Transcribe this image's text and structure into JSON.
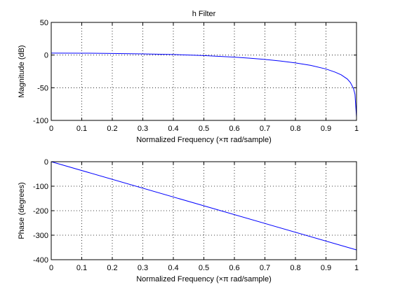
{
  "chart_data": [
    {
      "type": "line",
      "title": "h Filter",
      "xlabel": "Normalized Frequency  (×π rad/sample)",
      "ylabel": "Magnitude (dB)",
      "xlim": [
        0,
        1
      ],
      "ylim": [
        -100,
        50
      ],
      "xticks": [
        0,
        0.1,
        0.2,
        0.3,
        0.4,
        0.5,
        0.6,
        0.7,
        0.8,
        0.9,
        1
      ],
      "xtick_labels": [
        "0",
        "0.1",
        "0.2",
        "0.3",
        "0.4",
        "0.5",
        "0.6",
        "0.7",
        "0.8",
        "0.9",
        "1"
      ],
      "yticks": [
        -100,
        -50,
        0,
        50
      ],
      "ytick_labels": [
        "-100",
        "-50",
        "0",
        "50"
      ],
      "grid": true,
      "line_color": "#0000ff",
      "series": [
        {
          "x": [
            0,
            0.1,
            0.2,
            0.3,
            0.4,
            0.5,
            0.55,
            0.6,
            0.65,
            0.7,
            0.75,
            0.8,
            0.85,
            0.9,
            0.93,
            0.95,
            0.97,
            0.98,
            0.99,
            0.995,
            1.0
          ],
          "y": [
            3.0,
            2.9,
            2.5,
            1.8,
            0.9,
            -0.8,
            -1.9,
            -3.2,
            -4.8,
            -6.7,
            -9.1,
            -12.0,
            -15.8,
            -21.3,
            -26.1,
            -30.3,
            -36.7,
            -42.0,
            -51.0,
            -60.0,
            -95.0
          ]
        }
      ]
    },
    {
      "type": "line",
      "title": "",
      "xlabel": "Normalized Frequency  (×π rad/sample)",
      "ylabel": "Phase (degrees)",
      "xlim": [
        0,
        1
      ],
      "ylim": [
        -400,
        0
      ],
      "xticks": [
        0,
        0.1,
        0.2,
        0.3,
        0.4,
        0.5,
        0.6,
        0.7,
        0.8,
        0.9,
        1
      ],
      "xtick_labels": [
        "0",
        "0.1",
        "0.2",
        "0.3",
        "0.4",
        "0.5",
        "0.6",
        "0.7",
        "0.8",
        "0.9",
        "1"
      ],
      "yticks": [
        -400,
        -300,
        -200,
        -100,
        0
      ],
      "ytick_labels": [
        "-400",
        "-300",
        "-200",
        "-100",
        "0"
      ],
      "grid": true,
      "line_color": "#0000ff",
      "series": [
        {
          "x": [
            0,
            1
          ],
          "y": [
            0,
            -360
          ]
        }
      ]
    }
  ],
  "colors": {
    "line": "#0000ff",
    "axis": "#000000",
    "grid": "#000000",
    "background": "#ffffff"
  }
}
